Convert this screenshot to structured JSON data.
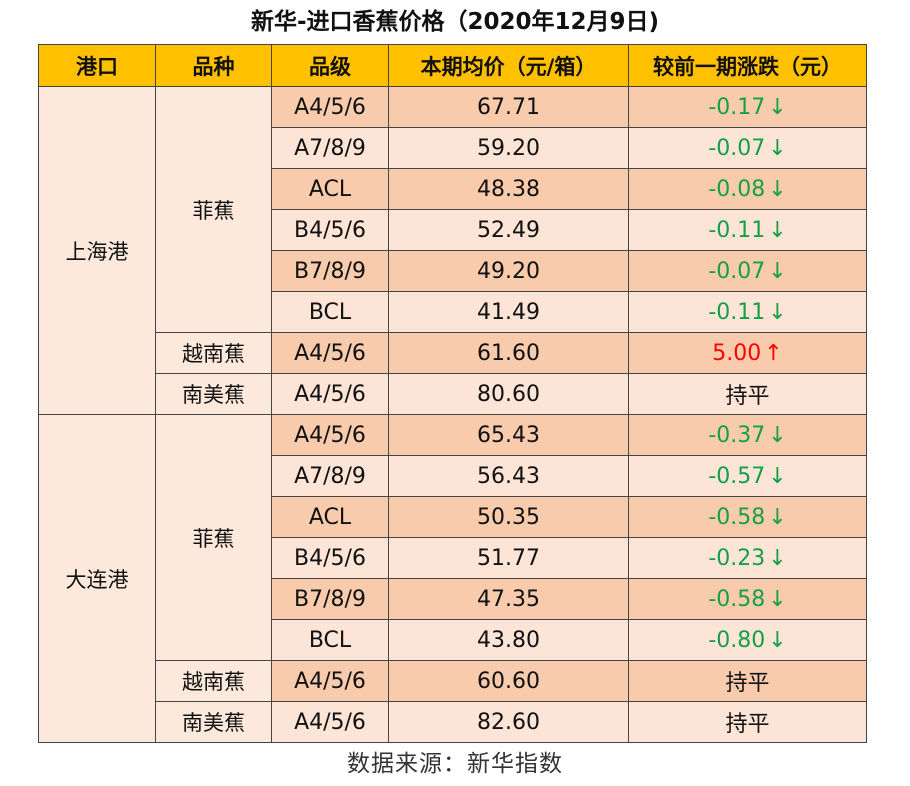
{
  "title": "新华-进口香蕉价格（2020年12月9日)",
  "headers": [
    "港口",
    "品种",
    "品级",
    "本期均价（元/箱）",
    "较前一期涨跌（元）"
  ],
  "ports": [
    {
      "port": "上海港",
      "varieties": [
        {
          "variety": "菲蕉",
          "rows": [
            {
              "grade": "A4/5/6",
              "price": "67.71",
              "change": "-0.17",
              "arrow": "↓",
              "trend": "down"
            },
            {
              "grade": "A7/8/9",
              "price": "59.20",
              "change": "-0.07",
              "arrow": "↓",
              "trend": "down"
            },
            {
              "grade": "ACL",
              "price": "48.38",
              "change": "-0.08",
              "arrow": "↓",
              "trend": "down"
            },
            {
              "grade": "B4/5/6",
              "price": "52.49",
              "change": "-0.11",
              "arrow": "↓",
              "trend": "down"
            },
            {
              "grade": "B7/8/9",
              "price": "49.20",
              "change": "-0.07",
              "arrow": "↓",
              "trend": "down"
            },
            {
              "grade": "BCL",
              "price": "41.49",
              "change": "-0.11",
              "arrow": "↓",
              "trend": "down"
            }
          ]
        },
        {
          "variety": "越南蕉",
          "rows": [
            {
              "grade": "A4/5/6",
              "price": "61.60",
              "change": "5.00",
              "arrow": "↑",
              "trend": "up"
            }
          ]
        },
        {
          "variety": "南美蕉",
          "rows": [
            {
              "grade": "A4/5/6",
              "price": "80.60",
              "change": "持平",
              "arrow": "",
              "trend": "flat"
            }
          ]
        }
      ]
    },
    {
      "port": "大连港",
      "varieties": [
        {
          "variety": "菲蕉",
          "rows": [
            {
              "grade": "A4/5/6",
              "price": "65.43",
              "change": "-0.37",
              "arrow": "↓",
              "trend": "down"
            },
            {
              "grade": "A7/8/9",
              "price": "56.43",
              "change": "-0.57",
              "arrow": "↓",
              "trend": "down"
            },
            {
              "grade": "ACL",
              "price": "50.35",
              "change": "-0.58",
              "arrow": "↓",
              "trend": "down"
            },
            {
              "grade": "B4/5/6",
              "price": "51.77",
              "change": "-0.23",
              "arrow": "↓",
              "trend": "down"
            },
            {
              "grade": "B7/8/9",
              "price": "47.35",
              "change": "-0.58",
              "arrow": "↓",
              "trend": "down"
            },
            {
              "grade": "BCL",
              "price": "43.80",
              "change": "-0.80",
              "arrow": "↓",
              "trend": "down"
            }
          ]
        },
        {
          "variety": "越南蕉",
          "rows": [
            {
              "grade": "A4/5/6",
              "price": "60.60",
              "change": "持平",
              "arrow": "",
              "trend": "flat"
            }
          ]
        },
        {
          "variety": "南美蕉",
          "rows": [
            {
              "grade": "A4/5/6",
              "price": "82.60",
              "change": "持平",
              "arrow": "",
              "trend": "flat"
            }
          ]
        }
      ]
    }
  ],
  "source": "数据来源：新华指数",
  "colors": {
    "header_bg": "#ffc000",
    "row_dark": "#f8cbad",
    "row_light": "#fce4d6",
    "merged_bg": "#fce9dc",
    "down": "#14a049",
    "up": "#ff0000"
  }
}
